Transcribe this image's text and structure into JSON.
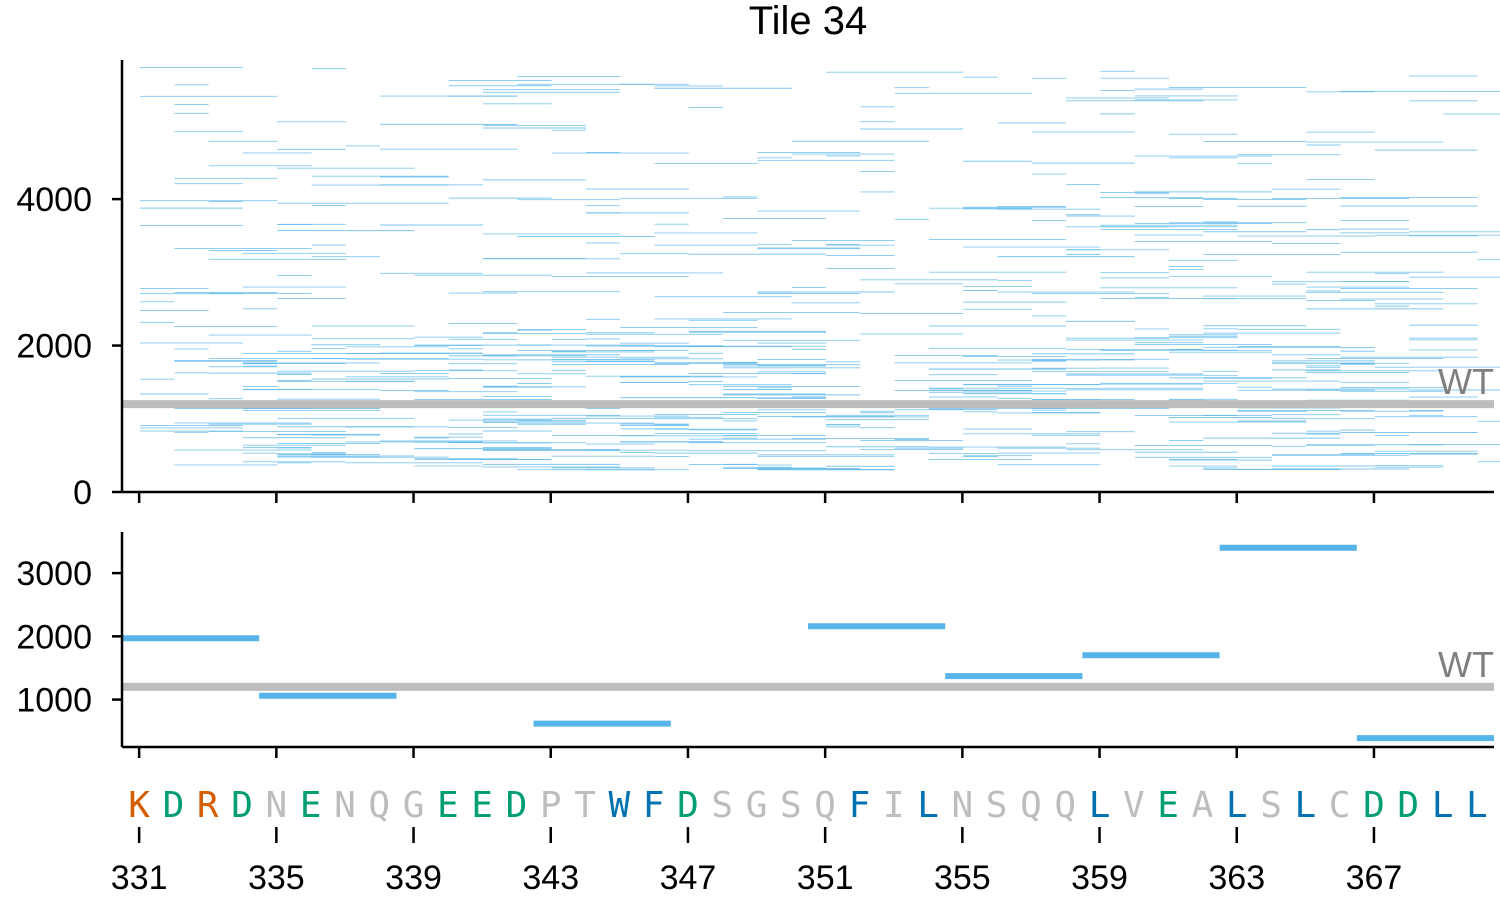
{
  "colors": {
    "segment": "#56B4E9",
    "wt_line": "#bdbdbd",
    "wt_text": "#808080",
    "acidic": "#009E73",
    "basic": "#D55E00",
    "aromatic_hydrophobic": "#0072B2",
    "other": "#bdbdbd"
  },
  "chart_data": [
    {
      "panel": "top",
      "type": "segments",
      "title": "Tile 34",
      "xlim": [
        330.5,
        370.5
      ],
      "ylim": [
        0,
        5900
      ],
      "yticks": [
        "0",
        "2000",
        "4000"
      ],
      "ytick_values": [
        0,
        2000,
        4000
      ],
      "wt_value": 1200,
      "wt_label": "WT",
      "segment_count": 700,
      "segment_value_range": [
        200,
        5800
      ],
      "segment_length_range_residues": [
        1,
        4
      ],
      "note_density": "many thin segments, densest between 300 and 2000"
    },
    {
      "panel": "bottom",
      "type": "segments",
      "xlim": [
        330.5,
        370.5
      ],
      "ylim": [
        250,
        3650
      ],
      "yticks": [
        "1000",
        "2000",
        "3000"
      ],
      "ytick_values": [
        1000,
        2000,
        3000
      ],
      "wt_value": 1200,
      "wt_label": "WT",
      "segments": [
        {
          "start": 330.5,
          "end": 334.5,
          "value": 1970
        },
        {
          "start": 334.5,
          "end": 338.5,
          "value": 1060
        },
        {
          "start": 342.5,
          "end": 346.5,
          "value": 620
        },
        {
          "start": 350.5,
          "end": 354.5,
          "value": 2160
        },
        {
          "start": 354.5,
          "end": 358.5,
          "value": 1370
        },
        {
          "start": 358.5,
          "end": 362.5,
          "value": 1700
        },
        {
          "start": 362.5,
          "end": 366.5,
          "value": 3400
        },
        {
          "start": 366.5,
          "end": 370.5,
          "value": 390
        }
      ]
    }
  ],
  "xaxis": {
    "start_position": 331,
    "sequence": [
      "K",
      "D",
      "R",
      "D",
      "N",
      "E",
      "N",
      "Q",
      "G",
      "E",
      "E",
      "D",
      "P",
      "T",
      "W",
      "F",
      "D",
      "S",
      "G",
      "S",
      "Q",
      "F",
      "I",
      "L",
      "N",
      "S",
      "Q",
      "Q",
      "L",
      "V",
      "E",
      "A",
      "L",
      "S",
      "L",
      "C",
      "D",
      "D",
      "L",
      "L"
    ],
    "residue_classes": [
      "basic",
      "acidic",
      "basic",
      "acidic",
      "other",
      "acidic",
      "other",
      "other",
      "other",
      "acidic",
      "acidic",
      "acidic",
      "other",
      "other",
      "aromatic_hydrophobic",
      "aromatic_hydrophobic",
      "acidic",
      "other",
      "other",
      "other",
      "other",
      "aromatic_hydrophobic",
      "other",
      "aromatic_hydrophobic",
      "other",
      "other",
      "other",
      "other",
      "aromatic_hydrophobic",
      "other",
      "acidic",
      "other",
      "aromatic_hydrophobic",
      "other",
      "aromatic_hydrophobic",
      "other",
      "acidic",
      "acidic",
      "aromatic_hydrophobic",
      "aromatic_hydrophobic"
    ],
    "tick_values": [
      331,
      335,
      339,
      343,
      347,
      351,
      355,
      359,
      363,
      367
    ],
    "tick_labels": [
      "331",
      "335",
      "339",
      "343",
      "347",
      "351",
      "355",
      "359",
      "363",
      "367"
    ]
  }
}
